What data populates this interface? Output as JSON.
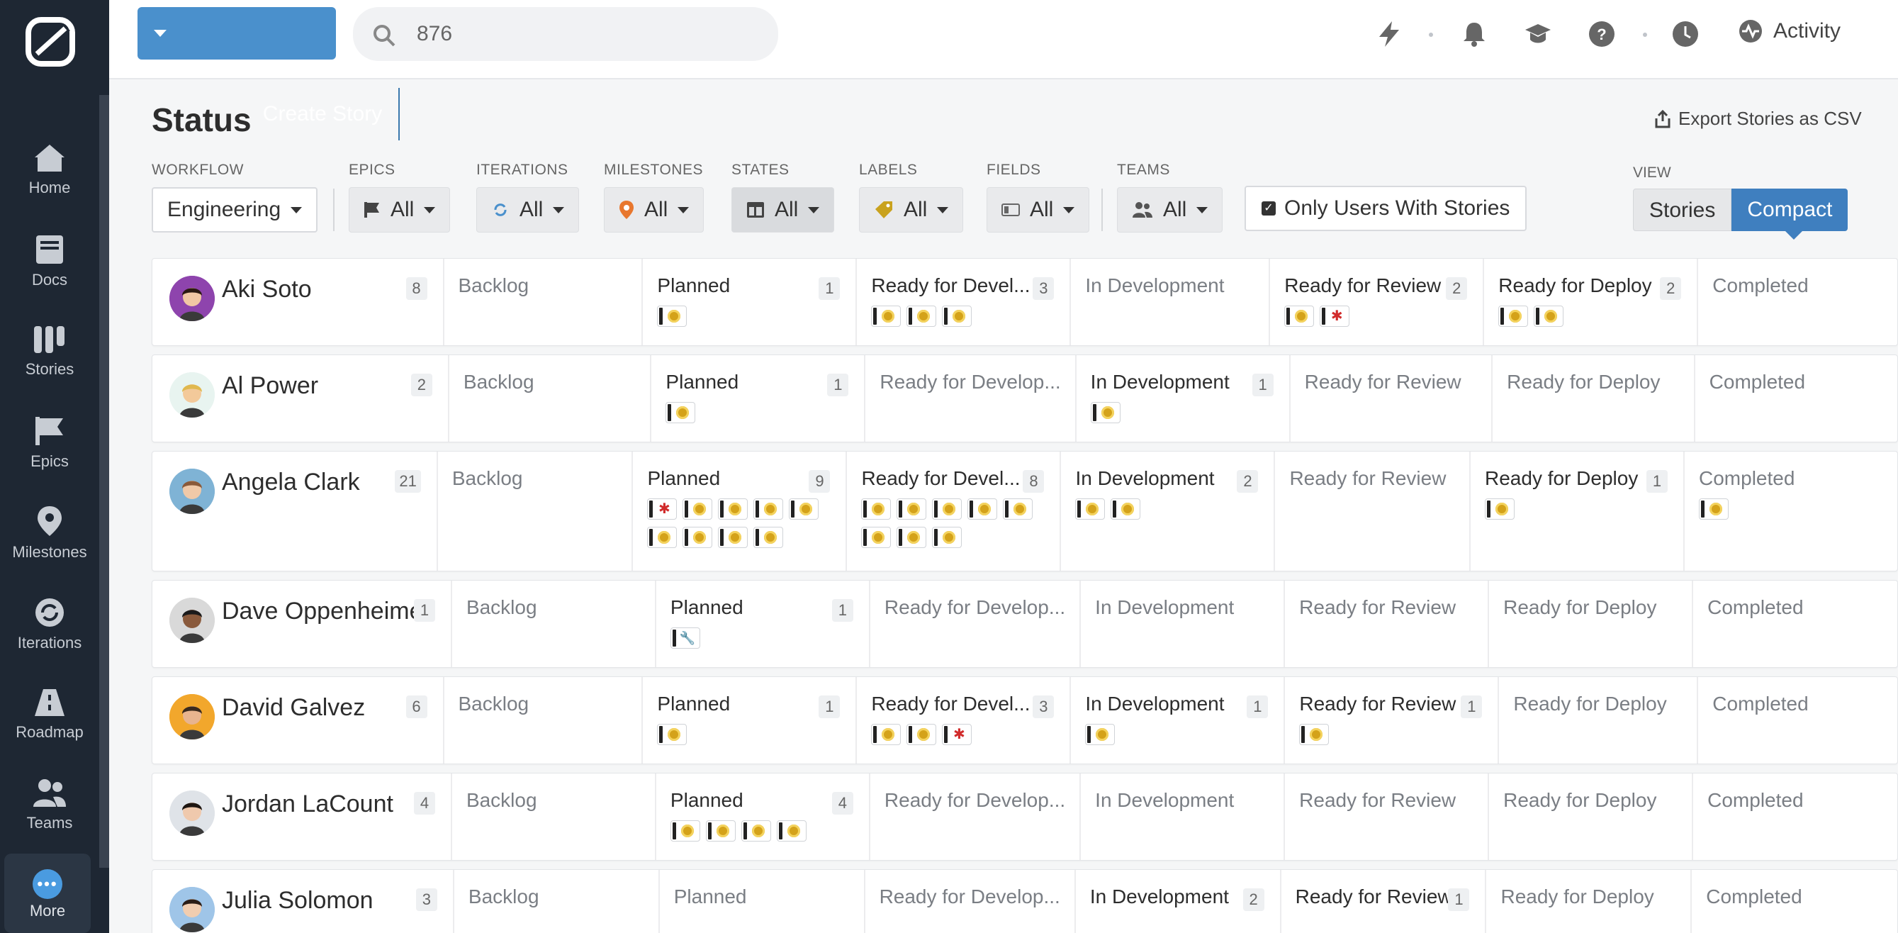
{
  "sidebar": {
    "items": [
      {
        "label": "Home"
      },
      {
        "label": "Docs"
      },
      {
        "label": "Stories"
      },
      {
        "label": "Epics"
      },
      {
        "label": "Milestones"
      },
      {
        "label": "Iterations"
      },
      {
        "label": "Roadmap"
      },
      {
        "label": "Teams"
      },
      {
        "label": "More"
      }
    ]
  },
  "topbar": {
    "create_label": "Create Story",
    "search_value": "876",
    "activity_label": "Activity"
  },
  "page": {
    "title": "Status",
    "export_label": "Export Stories as CSV"
  },
  "filters": {
    "workflow": {
      "label": "WORKFLOW",
      "value": "Engineering"
    },
    "epics": {
      "label": "EPICS",
      "value": "All"
    },
    "iterations": {
      "label": "ITERATIONS",
      "value": "All"
    },
    "milestones": {
      "label": "MILESTONES",
      "value": "All"
    },
    "states": {
      "label": "STATES",
      "value": "All"
    },
    "labels": {
      "label": "LABELS",
      "value": "All"
    },
    "fields": {
      "label": "FIELDS",
      "value": "All"
    },
    "teams": {
      "label": "TEAMS",
      "value": "All"
    },
    "only_users": "Only Users With Stories",
    "view": {
      "label": "VIEW",
      "stories": "Stories",
      "compact": "Compact",
      "selected": "Compact"
    }
  },
  "rows": [
    {
      "name": "Aki Soto",
      "count": "8",
      "cells": [
        {
          "title": "Backlog",
          "count": "",
          "chips": []
        },
        {
          "title": "Planned",
          "count": "1",
          "chips": [
            "feature"
          ]
        },
        {
          "title": "Ready for Devel...",
          "count": "3",
          "chips": [
            "feature",
            "feature",
            "feature"
          ]
        },
        {
          "title": "In Development",
          "count": "",
          "chips": []
        },
        {
          "title": "Ready for Review",
          "count": "2",
          "chips": [
            "feature",
            "bug"
          ]
        },
        {
          "title": "Ready for Deploy",
          "count": "2",
          "chips": [
            "feature",
            "feature"
          ]
        },
        {
          "title": "Completed",
          "count": "",
          "chips": []
        }
      ]
    },
    {
      "name": "Al Power",
      "count": "2",
      "cells": [
        {
          "title": "Backlog",
          "count": "",
          "chips": []
        },
        {
          "title": "Planned",
          "count": "1",
          "chips": [
            "feature"
          ]
        },
        {
          "title": "Ready for Develop...",
          "count": "",
          "chips": []
        },
        {
          "title": "In Development",
          "count": "1",
          "chips": [
            "feature"
          ]
        },
        {
          "title": "Ready for Review",
          "count": "",
          "chips": []
        },
        {
          "title": "Ready for Deploy",
          "count": "",
          "chips": []
        },
        {
          "title": "Completed",
          "count": "",
          "chips": []
        }
      ]
    },
    {
      "name": "Angela Clark",
      "count": "21",
      "cells": [
        {
          "title": "Backlog",
          "count": "",
          "chips": []
        },
        {
          "title": "Planned",
          "count": "9",
          "chips": [
            "bug",
            "feature",
            "feature",
            "feature",
            "feature",
            "feature",
            "feature",
            "feature",
            "feature"
          ]
        },
        {
          "title": "Ready for Devel...",
          "count": "8",
          "chips": [
            "feature",
            "feature",
            "feature",
            "feature",
            "feature",
            "feature",
            "feature",
            "feature"
          ]
        },
        {
          "title": "In Development",
          "count": "2",
          "chips": [
            "feature",
            "feature"
          ]
        },
        {
          "title": "Ready for Review",
          "count": "",
          "chips": []
        },
        {
          "title": "Ready for Deploy",
          "count": "1",
          "chips": [
            "feature"
          ]
        },
        {
          "title": "Completed",
          "count": "",
          "chips": [
            "feature"
          ]
        }
      ]
    },
    {
      "name": "Dave Oppenheimer",
      "count": "1",
      "cells": [
        {
          "title": "Backlog",
          "count": "",
          "chips": []
        },
        {
          "title": "Planned",
          "count": "1",
          "chips": [
            "chore"
          ]
        },
        {
          "title": "Ready for Develop...",
          "count": "",
          "chips": []
        },
        {
          "title": "In Development",
          "count": "",
          "chips": []
        },
        {
          "title": "Ready for Review",
          "count": "",
          "chips": []
        },
        {
          "title": "Ready for Deploy",
          "count": "",
          "chips": []
        },
        {
          "title": "Completed",
          "count": "",
          "chips": []
        }
      ]
    },
    {
      "name": "David Galvez",
      "count": "6",
      "cells": [
        {
          "title": "Backlog",
          "count": "",
          "chips": []
        },
        {
          "title": "Planned",
          "count": "1",
          "chips": [
            "feature"
          ]
        },
        {
          "title": "Ready for Devel...",
          "count": "3",
          "chips": [
            "feature",
            "feature",
            "bug"
          ]
        },
        {
          "title": "In Development",
          "count": "1",
          "chips": [
            "feature"
          ]
        },
        {
          "title": "Ready for Review",
          "count": "1",
          "chips": [
            "feature"
          ]
        },
        {
          "title": "Ready for Deploy",
          "count": "",
          "chips": []
        },
        {
          "title": "Completed",
          "count": "",
          "chips": []
        }
      ]
    },
    {
      "name": "Jordan LaCount",
      "count": "4",
      "cells": [
        {
          "title": "Backlog",
          "count": "",
          "chips": []
        },
        {
          "title": "Planned",
          "count": "4",
          "chips": [
            "feature",
            "feature",
            "feature",
            "feature"
          ]
        },
        {
          "title": "Ready for Develop...",
          "count": "",
          "chips": []
        },
        {
          "title": "In Development",
          "count": "",
          "chips": []
        },
        {
          "title": "Ready for Review",
          "count": "",
          "chips": []
        },
        {
          "title": "Ready for Deploy",
          "count": "",
          "chips": []
        },
        {
          "title": "Completed",
          "count": "",
          "chips": []
        }
      ]
    },
    {
      "name": "Julia Solomon",
      "count": "3",
      "cells": [
        {
          "title": "Backlog",
          "count": "",
          "chips": []
        },
        {
          "title": "Planned",
          "count": "",
          "chips": []
        },
        {
          "title": "Ready for Develop...",
          "count": "",
          "chips": []
        },
        {
          "title": "In Development",
          "count": "2",
          "chips": []
        },
        {
          "title": "Ready for Review",
          "count": "1",
          "chips": []
        },
        {
          "title": "Ready for Deploy",
          "count": "",
          "chips": []
        },
        {
          "title": "Completed",
          "count": "",
          "chips": []
        }
      ]
    }
  ],
  "colors": {
    "sidebar_bg": "#1e2733",
    "accent_blue": "#4a90cc",
    "feature_yellow": "#d4a21a",
    "bug_red": "#d12b2b"
  }
}
